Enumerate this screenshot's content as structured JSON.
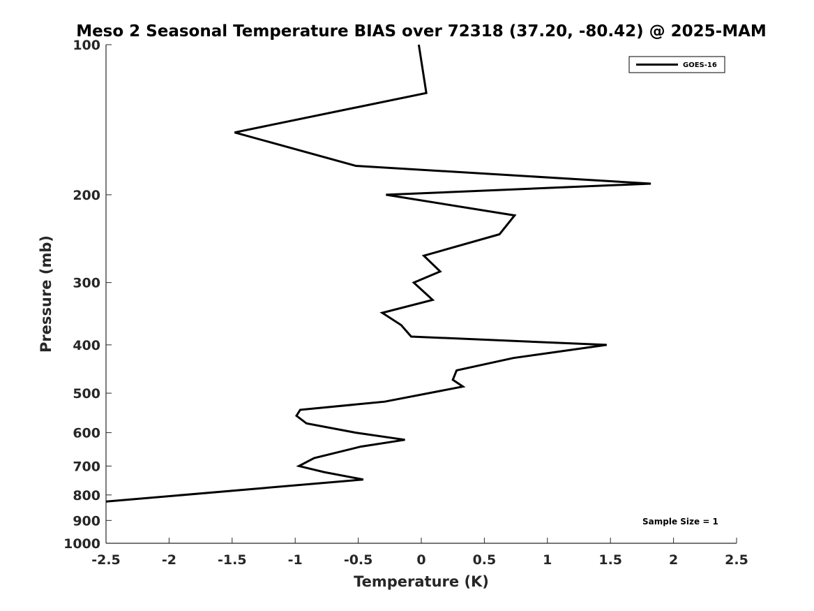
{
  "chart_data": {
    "type": "line",
    "title": "Meso 2 Seasonal Temperature BIAS over 72318 (37.20, -80.42) @ 2025-MAM",
    "xlabel": "Temperature (K)",
    "ylabel": "Pressure (mb)",
    "xlim": [
      -2.5,
      2.5
    ],
    "ylim": [
      100,
      1000
    ],
    "y_scale": "log",
    "y_reversed": true,
    "x_ticks": [
      "-2.5",
      "-2",
      "-1.5",
      "-1",
      "-0.5",
      "0",
      "0.5",
      "1",
      "1.5",
      "2",
      "2.5"
    ],
    "x_tick_values": [
      -2.5,
      -2,
      -1.5,
      -1,
      -0.5,
      0,
      0.5,
      1,
      1.5,
      2,
      2.5
    ],
    "y_ticks": [
      "100",
      "200",
      "300",
      "400",
      "500",
      "600",
      "700",
      "800",
      "900",
      "1000"
    ],
    "y_tick_values": [
      100,
      200,
      300,
      400,
      500,
      600,
      700,
      800,
      900,
      1000
    ],
    "grid": false,
    "legend": {
      "placement": "top-right",
      "entries": [
        "GOES-16"
      ]
    },
    "annotation": "Sample Size = 1",
    "series": [
      {
        "name": "GOES-16",
        "color": "#000000",
        "points": [
          {
            "x": -0.02,
            "p": 100
          },
          {
            "x": 0.04,
            "p": 125
          },
          {
            "x": -1.48,
            "p": 150
          },
          {
            "x": -0.52,
            "p": 175
          },
          {
            "x": 1.82,
            "p": 190
          },
          {
            "x": -0.28,
            "p": 200
          },
          {
            "x": 0.74,
            "p": 220
          },
          {
            "x": 0.62,
            "p": 240
          },
          {
            "x": 0.02,
            "p": 265
          },
          {
            "x": 0.15,
            "p": 285
          },
          {
            "x": -0.06,
            "p": 300
          },
          {
            "x": 0.09,
            "p": 325
          },
          {
            "x": -0.31,
            "p": 345
          },
          {
            "x": -0.16,
            "p": 365
          },
          {
            "x": -0.08,
            "p": 385
          },
          {
            "x": 1.47,
            "p": 400
          },
          {
            "x": 0.73,
            "p": 425
          },
          {
            "x": 0.28,
            "p": 450
          },
          {
            "x": 0.25,
            "p": 470
          },
          {
            "x": 0.33,
            "p": 485
          },
          {
            "x": -0.29,
            "p": 520
          },
          {
            "x": -0.96,
            "p": 540
          },
          {
            "x": -0.99,
            "p": 555
          },
          {
            "x": -0.91,
            "p": 575
          },
          {
            "x": -0.52,
            "p": 600
          },
          {
            "x": -0.13,
            "p": 620
          },
          {
            "x": -0.48,
            "p": 640
          },
          {
            "x": -0.85,
            "p": 675
          },
          {
            "x": -0.97,
            "p": 700
          },
          {
            "x": -0.77,
            "p": 720
          },
          {
            "x": -0.46,
            "p": 745
          },
          {
            "x": -2.5,
            "p": 825
          }
        ]
      }
    ]
  }
}
